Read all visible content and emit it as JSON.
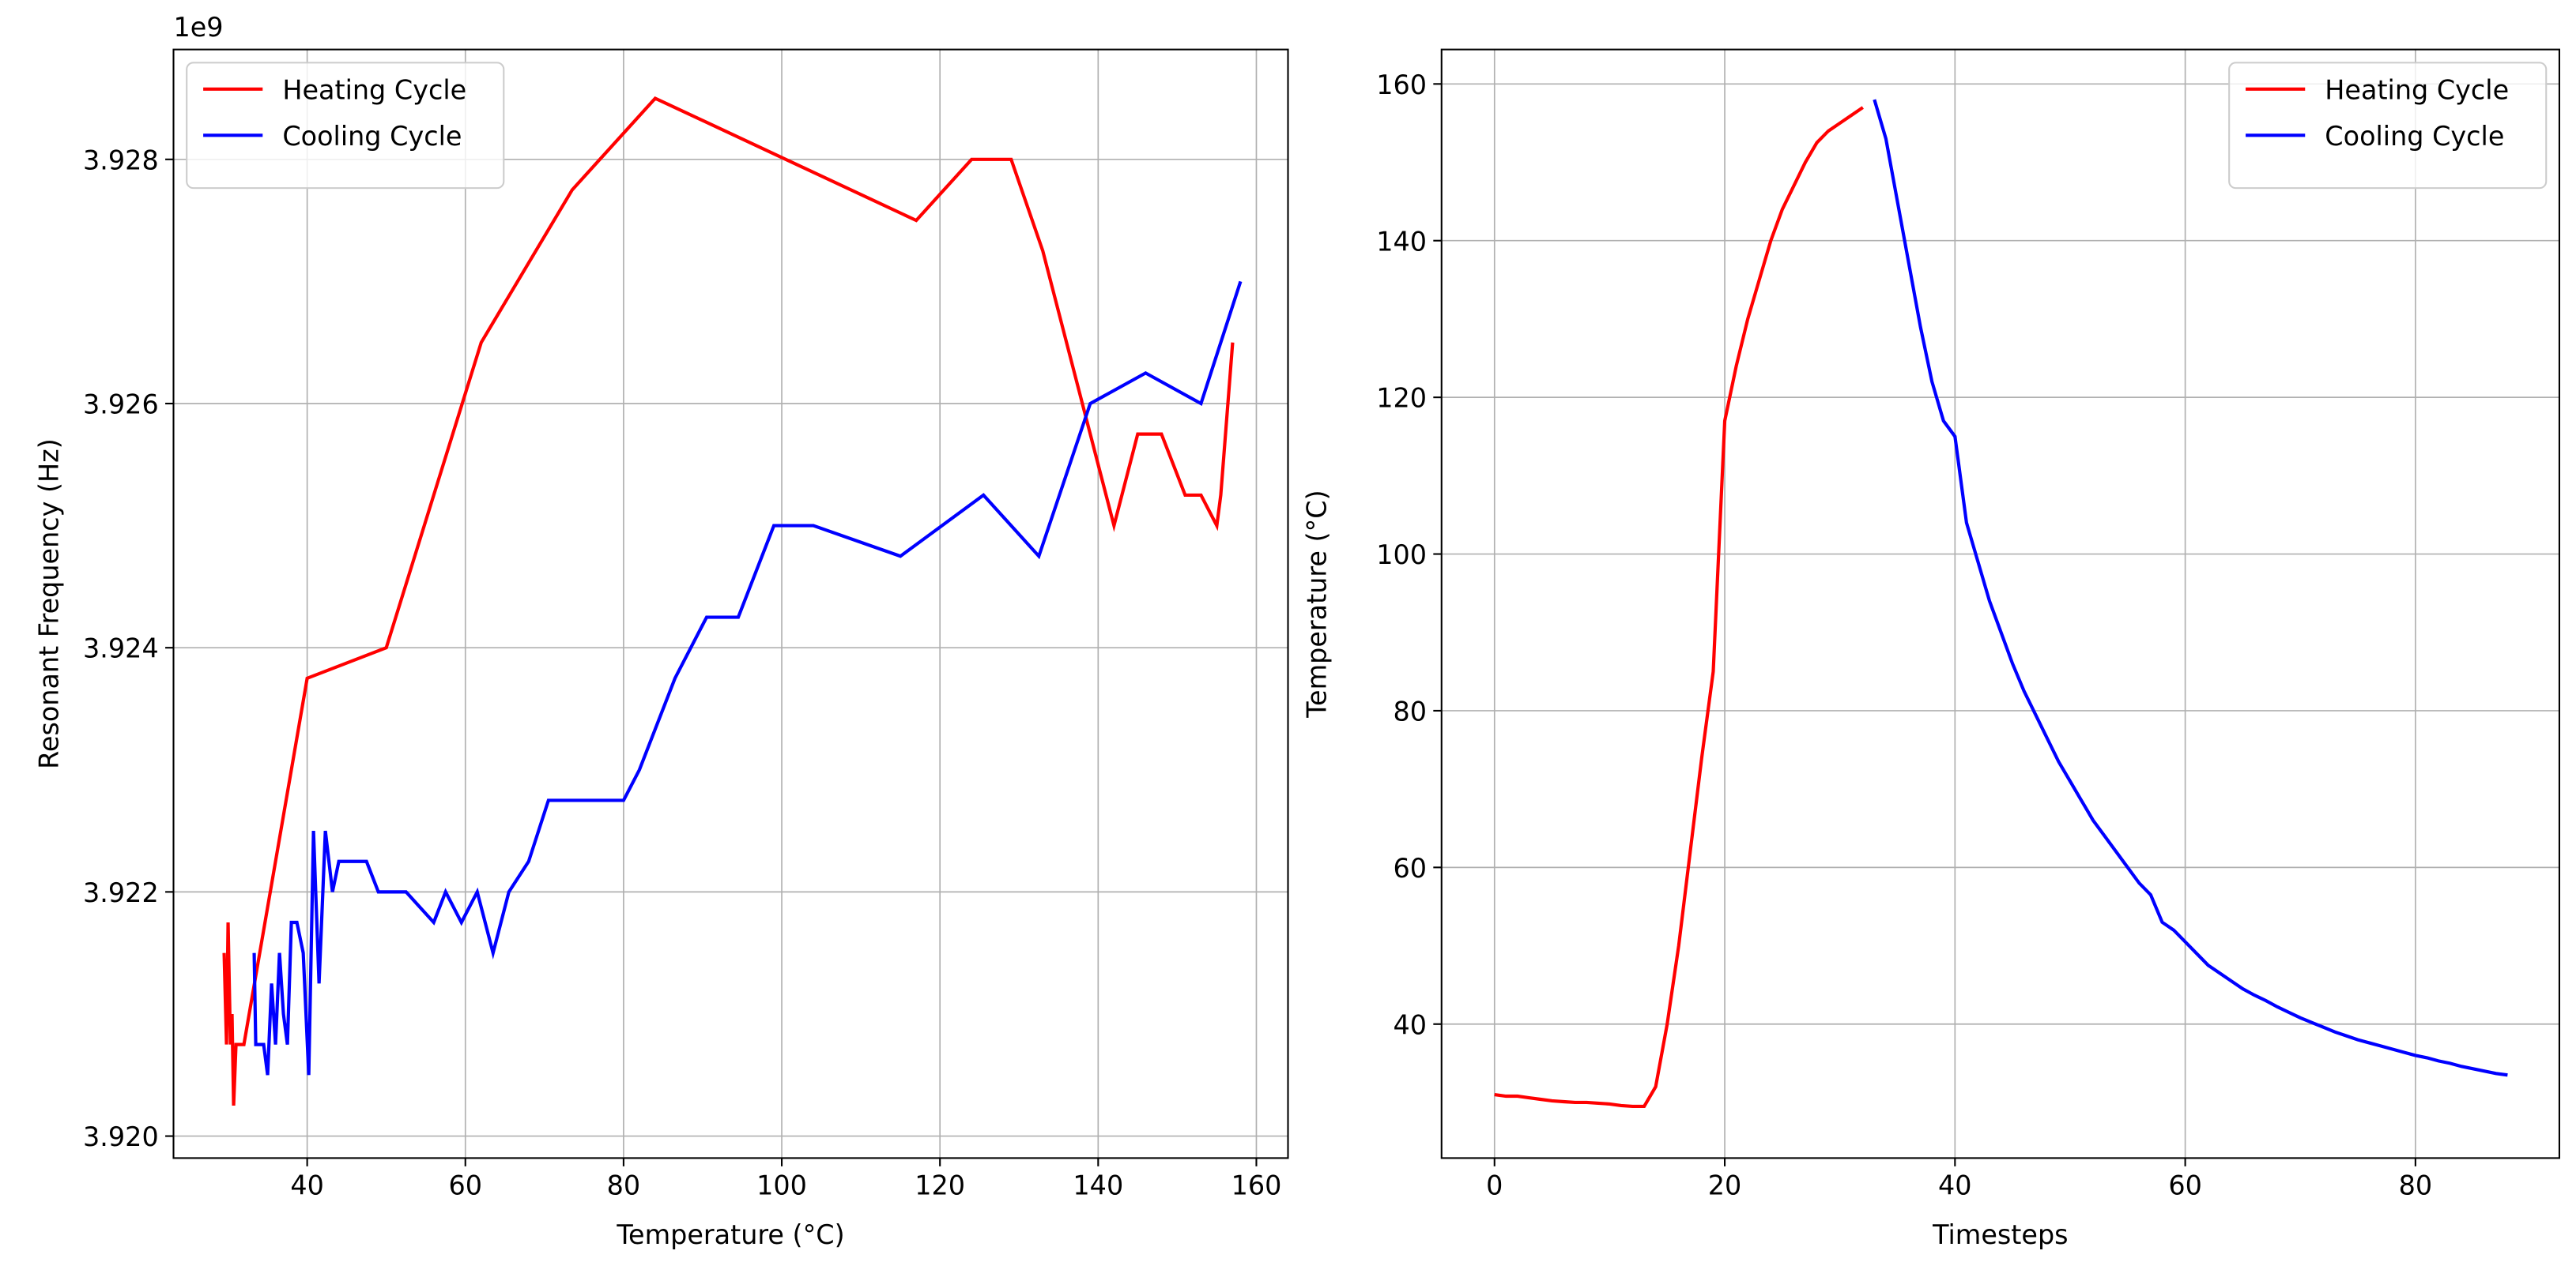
{
  "chart_data": [
    {
      "type": "line",
      "xlabel": "Temperature (°C)",
      "ylabel": "Resonant Frequency (Hz)",
      "offset_text": "1e9",
      "xlim": [
        23.1,
        164
      ],
      "ylim": [
        3.91982,
        3.9289
      ],
      "xticks": [
        40,
        60,
        80,
        100,
        120,
        140,
        160
      ],
      "yticks": [
        {
          "value": 3.92,
          "label": "3.920"
        },
        {
          "value": 3.922,
          "label": "3.922"
        },
        {
          "value": 3.924,
          "label": "3.924"
        },
        {
          "value": 3.926,
          "label": "3.926"
        },
        {
          "value": 3.928,
          "label": "3.928"
        }
      ],
      "grid": true,
      "legend": "upper left",
      "series": [
        {
          "name": "Heating Cycle",
          "color": "#ff0000",
          "x": [
            29.5,
            29.8,
            30,
            30.3,
            30.5,
            30.7,
            31,
            32,
            40,
            50,
            62,
            73.5,
            84,
            117,
            124,
            129,
            133,
            142,
            145,
            148,
            151,
            153,
            155,
            155.5,
            157
          ],
          "values": [
            3.9215,
            3.92075,
            3.92175,
            3.92075,
            3.921,
            3.92025,
            3.92075,
            3.92075,
            3.92375,
            3.924,
            3.9265,
            3.92775,
            3.9285,
            3.9275,
            3.928,
            3.928,
            3.92725,
            3.925,
            3.92575,
            3.92575,
            3.92525,
            3.92525,
            3.925,
            3.92525,
            3.9265
          ]
        },
        {
          "name": "Cooling Cycle",
          "color": "#0000ff",
          "x": [
            158,
            153,
            146,
            139,
            132.5,
            125.5,
            115,
            104,
            99,
            94.5,
            90.5,
            86.5,
            82,
            80,
            70.5,
            68,
            65.5,
            63.5,
            61.5,
            59.5,
            57.5,
            56,
            52.5,
            49,
            47.5,
            44,
            43.2,
            42.3,
            41.5,
            40.8,
            40.2,
            39.5,
            38.7,
            38,
            37.5,
            37,
            36.5,
            36,
            35.5,
            35,
            34.5,
            33.5,
            33.3
          ],
          "values": [
            3.927,
            3.926,
            3.92625,
            3.926,
            3.92475,
            3.92525,
            3.92475,
            3.925,
            3.925,
            3.92425,
            3.92425,
            3.92375,
            3.923,
            3.92275,
            3.92275,
            3.92225,
            3.922,
            3.9215,
            3.922,
            3.92175,
            3.922,
            3.92175,
            3.922,
            3.922,
            3.92225,
            3.92225,
            3.922,
            3.9225,
            3.92125,
            3.9225,
            3.9205,
            3.9215,
            3.92175,
            3.92175,
            3.92075,
            3.921,
            3.9215,
            3.92075,
            3.92125,
            3.9205,
            3.92075,
            3.92075,
            3.9215
          ]
        }
      ]
    },
    {
      "type": "line",
      "xlabel": "Timesteps",
      "ylabel": "Temperature (°C)",
      "xlim": [
        -4.6,
        92.5
      ],
      "ylim": [
        22.9,
        164.4
      ],
      "xticks": [
        0,
        20,
        40,
        60,
        80
      ],
      "yticks": [
        40,
        60,
        80,
        100,
        120,
        140,
        160
      ],
      "grid": true,
      "legend": "upper right",
      "series": [
        {
          "name": "Heating Cycle",
          "color": "#ff0000",
          "x": [
            0,
            1,
            2,
            3,
            4,
            5,
            6,
            7,
            8,
            9,
            10,
            11,
            12,
            13,
            14,
            15,
            16,
            17,
            18,
            19,
            20,
            21,
            22,
            23,
            24,
            25,
            26,
            27,
            28,
            29,
            30,
            31,
            32
          ],
          "values": [
            31,
            30.8,
            30.8,
            30.6,
            30.4,
            30.2,
            30.1,
            30,
            30,
            29.9,
            29.8,
            29.6,
            29.5,
            29.5,
            32,
            40,
            50,
            62,
            74,
            85,
            117,
            124,
            130,
            135,
            140,
            144,
            147,
            150,
            152.5,
            154,
            155,
            156,
            157
          ]
        },
        {
          "name": "Cooling Cycle",
          "color": "#0000ff",
          "x": [
            33,
            34,
            35,
            36,
            37,
            38,
            39,
            40,
            41,
            42,
            43,
            44,
            45,
            46,
            47,
            48,
            49,
            50,
            51,
            52,
            53,
            54,
            55,
            56,
            57,
            58,
            59,
            60,
            61,
            62,
            63,
            64,
            65,
            66,
            67,
            68,
            69,
            70,
            71,
            72,
            73,
            74,
            75,
            76,
            77,
            78,
            79,
            80,
            81,
            82,
            83,
            84,
            85,
            86,
            87,
            88
          ],
          "values": [
            158,
            153,
            145,
            137,
            129,
            122,
            117,
            115,
            104,
            99,
            94,
            90,
            86,
            82.5,
            79.5,
            76.5,
            73.5,
            71,
            68.5,
            66,
            64,
            62,
            60,
            58,
            56.5,
            53,
            52,
            50.5,
            49,
            47.5,
            46.5,
            45.5,
            44.5,
            43.7,
            43,
            42.2,
            41.5,
            40.8,
            40.2,
            39.6,
            39,
            38.5,
            38,
            37.6,
            37.2,
            36.8,
            36.4,
            36,
            35.7,
            35.3,
            35,
            34.6,
            34.3,
            34,
            33.7,
            33.5
          ]
        }
      ]
    }
  ]
}
